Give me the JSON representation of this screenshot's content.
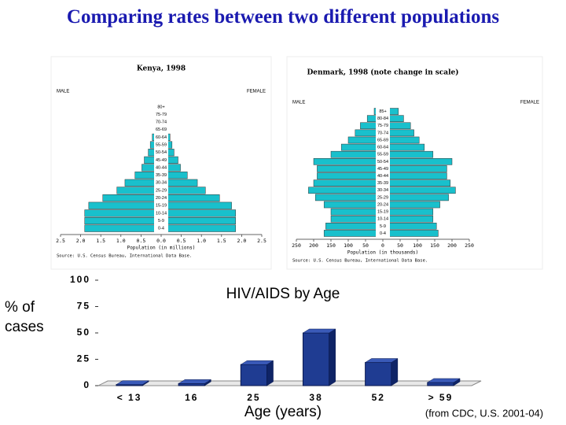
{
  "slide_title": "Comparing rates between two different populations",
  "chart_data": [
    {
      "type": "pyramid",
      "title": "Kenya, 1998",
      "left_label": "MALE",
      "right_label": "FEMALE",
      "xlabel": "Population (in millions)",
      "source": "Source: U.S. Census Bureau, International Data Base.",
      "categories": [
        "0-4",
        "5-9",
        "10-14",
        "15-19",
        "20-24",
        "25-29",
        "30-34",
        "35-39",
        "40-44",
        "45-49",
        "50-54",
        "55-59",
        "60-64",
        "65-69",
        "70-74",
        "75-79",
        "80+"
      ],
      "series": [
        {
          "name": "MALE",
          "color": "#19c0cc",
          "values": [
            -1.9,
            -1.9,
            -1.9,
            -1.8,
            -1.45,
            -1.1,
            -0.9,
            -0.65,
            -0.48,
            -0.42,
            -0.32,
            -0.27,
            -0.22,
            -0.17,
            -0.12,
            -0.08,
            -0.05
          ]
        },
        {
          "name": "FEMALE",
          "color": "#19c0cc",
          "values": [
            1.85,
            1.85,
            1.85,
            1.75,
            1.45,
            1.1,
            0.9,
            0.65,
            0.48,
            0.42,
            0.32,
            0.27,
            0.22,
            0.17,
            0.12,
            0.08,
            0.05
          ]
        }
      ],
      "xlim": [
        -2.5,
        2.5
      ],
      "xticks": [
        {
          "value": -2.5,
          "label": "2.5"
        },
        {
          "value": -2,
          "label": "2.0"
        },
        {
          "value": -1.5,
          "label": "1.5"
        },
        {
          "value": -1,
          "label": "1.0"
        },
        {
          "value": -0.5,
          "label": "0.5"
        },
        {
          "value": 0,
          "label": "0.0"
        },
        {
          "value": 0.5,
          "label": "0.5"
        },
        {
          "value": 1,
          "label": "1.0"
        },
        {
          "value": 1.5,
          "label": "1.5"
        },
        {
          "value": 2,
          "label": "2.0"
        },
        {
          "value": 2.5,
          "label": "2.5"
        }
      ]
    },
    {
      "type": "pyramid",
      "title": "Denmark, 1998 (note change in scale)",
      "left_label": "MALE",
      "right_label": "FEMALE",
      "xlabel": "Population (in thousands)",
      "source": "Source: U.S. Census Bureau, International Data Base.",
      "categories": [
        "0-4",
        "5-9",
        "10-14",
        "15-19",
        "20-24",
        "25-29",
        "30-34",
        "35-39",
        "40-44",
        "45-49",
        "50-54",
        "55-59",
        "60-64",
        "65-69",
        "70-74",
        "75-79",
        "80-84",
        "85+"
      ],
      "series": [
        {
          "name": "MALE",
          "color": "#19c0cc",
          "values": [
            -170,
            -165,
            -150,
            -150,
            -170,
            -195,
            -215,
            -200,
            -190,
            -190,
            -200,
            -150,
            -120,
            -100,
            -80,
            -65,
            -45,
            -25
          ]
        },
        {
          "name": "FEMALE",
          "color": "#19c0cc",
          "values": [
            160,
            155,
            145,
            145,
            165,
            190,
            210,
            195,
            185,
            185,
            200,
            145,
            120,
            105,
            90,
            80,
            60,
            45
          ]
        }
      ],
      "xlim": [
        -250,
        250
      ],
      "xticks": [
        {
          "value": -250,
          "label": "250"
        },
        {
          "value": -200,
          "label": "200"
        },
        {
          "value": -150,
          "label": "150"
        },
        {
          "value": -100,
          "label": "100"
        },
        {
          "value": -50,
          "label": "50"
        },
        0,
        50,
        100,
        150,
        200,
        250
      ]
    },
    {
      "type": "bar",
      "title": "HIV/AIDS by Age",
      "ylabel": "% of cases",
      "xlabel": "Age (years)",
      "note": "(from CDC, U.S. 2001-04)",
      "color": "#1f3c92",
      "categories": [
        "< 13",
        "16",
        "25",
        "38",
        "52",
        "> 59"
      ],
      "values": [
        1,
        2,
        20,
        50,
        22,
        3
      ],
      "ylim": [
        0,
        100
      ],
      "yticks": [
        0,
        25,
        50,
        75,
        100
      ]
    }
  ]
}
